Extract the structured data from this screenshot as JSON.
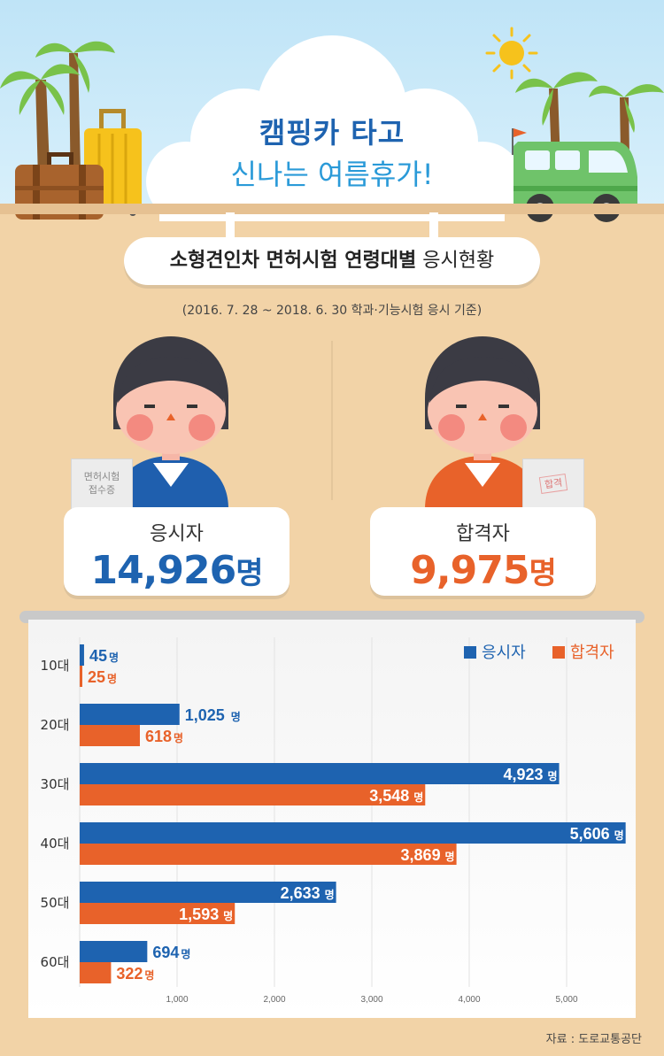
{
  "header": {
    "title_line1": "캠핑카 타고",
    "title_line2": "신나는 여름휴가!",
    "subtitle_bold": "소형견인차 면허시험 연령대별",
    "subtitle_rest": " 응시현황",
    "basis": "(2016. 7. 28 ~ 2018. 6. 30 학과·기능시험 응시 기준)"
  },
  "illustration": {
    "left_document": "면허시험\n접수증",
    "right_stamp": "합격"
  },
  "stats": {
    "applicants_label": "응시자",
    "applicants_value": "14,926",
    "passed_label": "합격자",
    "passed_value": "9,975",
    "unit": "명"
  },
  "colors": {
    "applicants": "#1e63b0",
    "passed": "#e8622a",
    "title": "#1e63b0",
    "sky": "#bfe4f7",
    "background": "#f2d3a7"
  },
  "chart_data": {
    "type": "bar",
    "orientation": "horizontal",
    "categories": [
      "10대",
      "20대",
      "30대",
      "40대",
      "50대",
      "60대"
    ],
    "series": [
      {
        "name": "응시자",
        "values": [
          45,
          1025,
          4923,
          5606,
          2633,
          694
        ]
      },
      {
        "name": "합격자",
        "values": [
          25,
          618,
          3548,
          3869,
          1593,
          322
        ]
      }
    ],
    "value_labels": {
      "응시자": [
        "45",
        "1,025",
        "4,923",
        "5,606",
        "2,633",
        "694"
      ],
      "합격자": [
        "25",
        "618",
        "3,548",
        "3,869",
        "1,593",
        "322"
      ]
    },
    "value_unit": "명",
    "xticks": [
      "1,000",
      "2,000",
      "3,000",
      "4,000",
      "5,000"
    ],
    "xlim": [
      0,
      5700
    ],
    "grid": true,
    "legend_position": "top-right"
  },
  "source": "자료 : 도로교통공단"
}
